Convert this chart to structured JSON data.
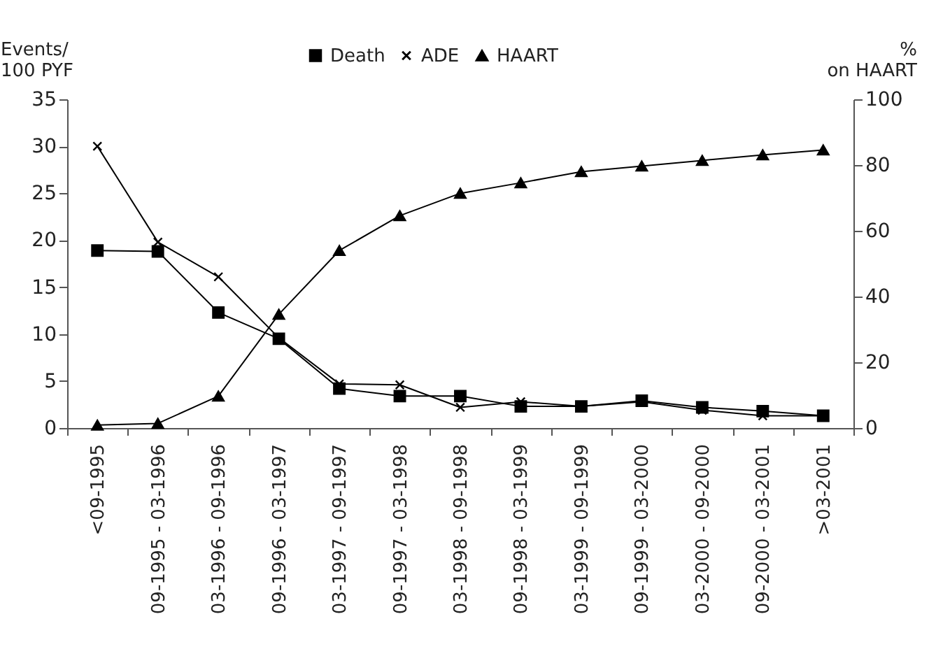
{
  "chart_data": {
    "type": "line",
    "categories": [
      "<09-1995",
      "09-1995 - 03-1996",
      "03-1996 - 09-1996",
      "09-1996 - 03-1997",
      "03-1997 - 09-1997",
      "09-1997 - 03-1998",
      "03-1998 - 09-1998",
      "09-1998 - 03-1999",
      "03-1999 - 09-1999",
      "09-1999 - 03-2000",
      "03-2000 - 09-2000",
      "09-2000 - 03-2001",
      ">03-2001"
    ],
    "ylabel": "Events/\n100 PYF",
    "y2label": "%\non HAART",
    "ylim": [
      0,
      35
    ],
    "yticks": [
      0,
      5,
      10,
      15,
      20,
      25,
      30,
      35
    ],
    "y2lim": [
      0,
      100
    ],
    "y2ticks": [
      0,
      20,
      40,
      60,
      80,
      100
    ],
    "legend": "top",
    "grid": false,
    "series": [
      {
        "name": "Death",
        "color": "#000000",
        "marker": "square",
        "values": [
          18.9,
          18.8,
          12.3,
          9.5,
          4.2,
          3.4,
          3.4,
          2.3,
          2.3,
          2.9,
          2.2,
          1.8,
          1.3
        ]
      },
      {
        "name": "ADE",
        "color": "#000000",
        "marker": "cross",
        "values": [
          30,
          19.8,
          16.1,
          9.6,
          4.7,
          4.6,
          2.2,
          2.8,
          2.3,
          2.8,
          1.9,
          1.3,
          1.3
        ]
      },
      {
        "name": "HAART",
        "color": "#000000",
        "marker": "triangle",
        "axis": "y2",
        "values": [
          0.9,
          1.4,
          9.7,
          34.6,
          54,
          64.6,
          71.4,
          74.6,
          78,
          79.7,
          81.4,
          83.1,
          84.6
        ]
      }
    ]
  }
}
